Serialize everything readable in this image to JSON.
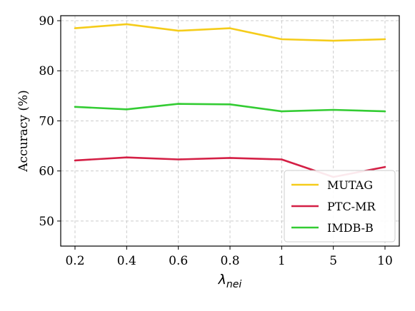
{
  "chart_data": {
    "type": "line",
    "categories": [
      "0.2",
      "0.4",
      "0.6",
      "0.8",
      "1",
      "5",
      "10"
    ],
    "series": [
      {
        "name": "MUTAG",
        "color": "#F5CC1A",
        "values": [
          88.5,
          89.3,
          88.0,
          88.5,
          86.3,
          86.0,
          86.3
        ]
      },
      {
        "name": "PTC-MR",
        "color": "#D41F45",
        "values": [
          62.1,
          62.7,
          62.3,
          62.6,
          62.3,
          58.8,
          60.8
        ]
      },
      {
        "name": "IMDB-B",
        "color": "#33CC33",
        "values": [
          72.8,
          72.3,
          73.4,
          73.3,
          71.9,
          72.2,
          71.9
        ]
      }
    ],
    "xlabel": {
      "main": "λ",
      "sub": "nei"
    },
    "ylabel": "Accuracy (%)",
    "ylim": [
      45,
      91
    ],
    "yticks": [
      50,
      60,
      70,
      80,
      90
    ],
    "grid": true,
    "legend_position": "lower-right"
  }
}
